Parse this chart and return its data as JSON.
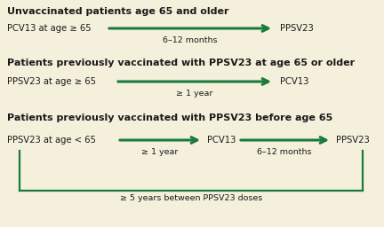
{
  "bg_color": "#f5f0dc",
  "arrow_color": "#1a7a3c",
  "text_color": "#1a1a1a",
  "section1_title": "Unvaccinated patients age 65 and older",
  "section2_title": "Patients previously vaccinated with PPSV23 at age 65 or older",
  "section3_title": "Patients previously vaccinated with PPSV23 before age 65",
  "s1_left": "PCV13 at age ≥ 65",
  "s1_right": "PPSV23",
  "s1_label": "6–12 months",
  "s2_left": "PPSV23 at age ≥ 65",
  "s2_right": "PCV13",
  "s2_label": "≥ 1 year",
  "s3_left": "PPSV23 at age < 65",
  "s3_mid": "PCV13",
  "s3_right": "PPSV23",
  "s3_label1": "≥ 1 year",
  "s3_label2": "6–12 months",
  "s3_bottom_label": "≥ 5 years between PPSV23 doses",
  "title_fontsize": 8.0,
  "body_fontsize": 7.2,
  "label_fontsize": 6.8
}
